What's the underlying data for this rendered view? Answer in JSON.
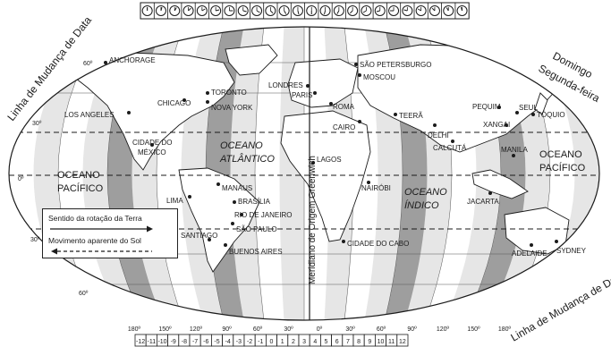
{
  "title_left": "Linha de Mudança de Data",
  "title_right_bottom": "Linha de Mudança de Data",
  "day_labels": {
    "domingo": "Domingo",
    "segunda": "Segunda-feira"
  },
  "meridian_label": "Meridiano de Origem Greenwich",
  "oceans": {
    "pacifico_oeste": [
      "OCEANO",
      "PACÍFICO"
    ],
    "atlantico": [
      "OCEANO",
      "ATLÂNTICO"
    ],
    "indico": [
      "OCEANO",
      "ÍNDICO"
    ],
    "pacifico_leste": [
      "OCEANO",
      "PACÍFICO"
    ]
  },
  "latitudes": [
    "60º",
    "30º",
    "0º",
    "30º",
    "60º"
  ],
  "longitudes": [
    "180º",
    "150º",
    "120º",
    "90º",
    "60º",
    "30º",
    "0º",
    "30º",
    "60º",
    "90º",
    "120º",
    "150º",
    "180º"
  ],
  "time_zones": [
    "-12",
    "-11",
    "-10",
    "-9",
    "-8",
    "-7",
    "-6",
    "-5",
    "-4",
    "-3",
    "-2",
    "-1",
    "0",
    "1",
    "2",
    "3",
    "4",
    "5",
    "6",
    "7",
    "8",
    "9",
    "10",
    "11",
    "12"
  ],
  "cities": {
    "anchorage": "ANCHORAGE",
    "chicago": "CHICAGO",
    "toronto": "TORONTO",
    "nova_york": "NOVA YORK",
    "los_angeles": "LOS ANGELES",
    "cidade_mexico_1": "CIDADE DO",
    "cidade_mexico_2": "MÉXICO",
    "lima": "LIMA",
    "manaus": "MANAUS",
    "brasilia": "BRASÍLIA",
    "rio": "RIO DE JANEIRO",
    "sao_paulo": "SÃO PAULO",
    "santiago": "SANTIAGO",
    "buenos_aires": "BUENOS AIRES",
    "londres": "LONDRES",
    "paris": "PARIS",
    "roma": "ROMA",
    "cairo": "CAIRO",
    "lagos": "LAGOS",
    "nairobi": "NAIRÓBI",
    "cidade_do_cabo": "CIDADE DO CABO",
    "sao_petersburgo": "SÃO PETERSBURGO",
    "moscou": "MOSCOU",
    "teera": "TEERÃ",
    "delhi": "DELHI",
    "calcuta": "CALCUTÁ",
    "pequim": "PEQUIM",
    "seul": "SEUL",
    "toquio": "TÓQUIO",
    "xangai": "XANGAI",
    "manila": "MANILA",
    "jacarta": "JACARTA",
    "adelaide": "ADELAIDE",
    "sydney": "SYDNEY"
  },
  "legend": {
    "rotation": "Sentido da rotação da Terra",
    "sun": "Movimento aparente do Sol"
  },
  "clock_count": 24
}
